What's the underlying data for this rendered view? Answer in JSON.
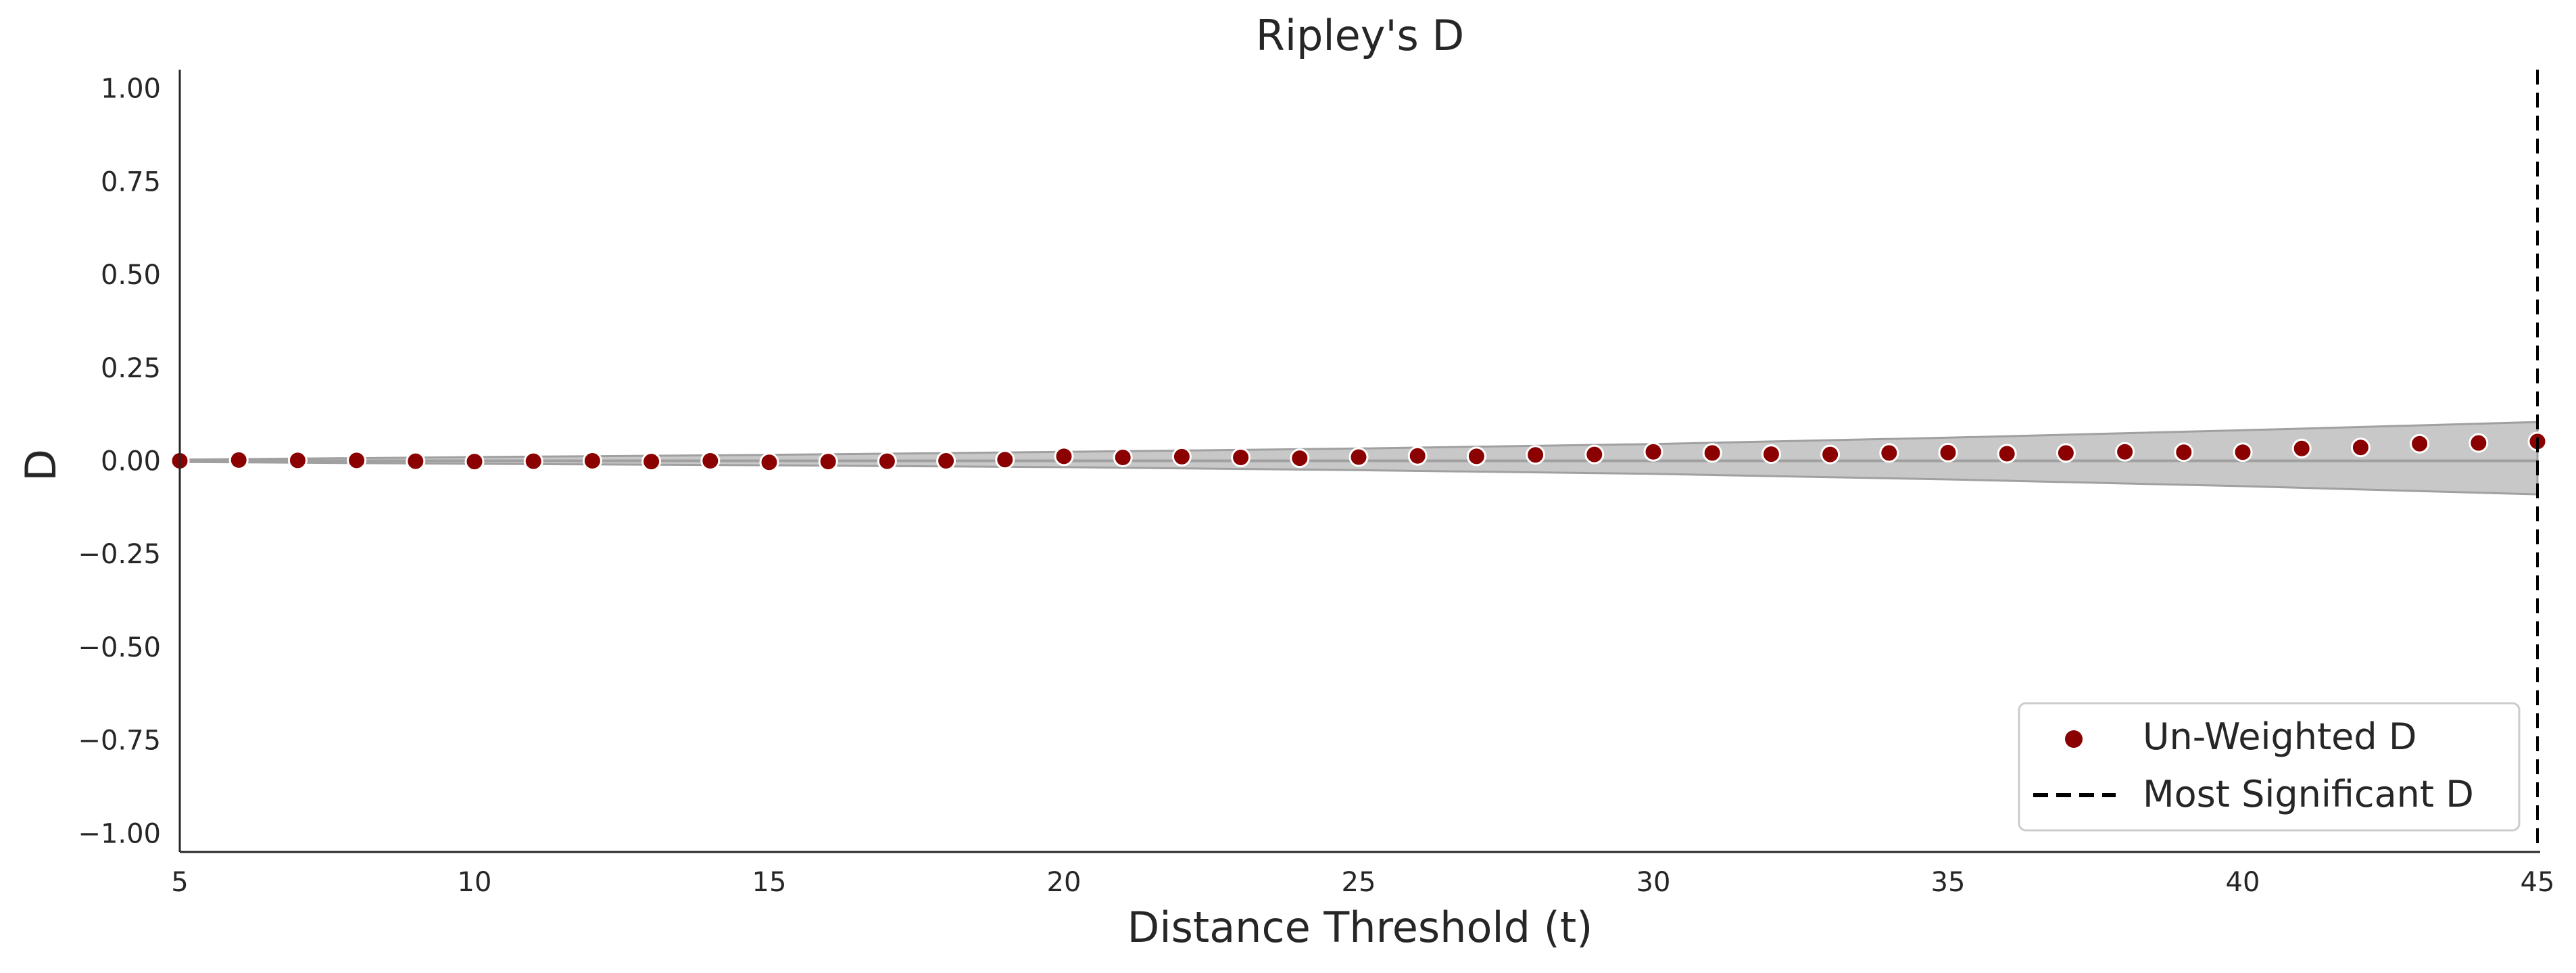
{
  "chart_data": {
    "type": "scatter",
    "title": "Ripley's D",
    "xlabel": "Distance Threshold (t)",
    "ylabel": "D",
    "xlim": [
      5,
      45
    ],
    "ylim": [
      -1.05,
      1.05
    ],
    "x_ticks": [
      5,
      10,
      15,
      20,
      25,
      30,
      35,
      40,
      45
    ],
    "x_tick_labels": [
      "5",
      "10",
      "15",
      "20",
      "25",
      "30",
      "35",
      "40",
      "45"
    ],
    "y_ticks": [
      1.0,
      0.75,
      0.5,
      0.25,
      0.0,
      -0.25,
      -0.5,
      -0.75,
      -1.0
    ],
    "y_tick_labels": [
      "1.00",
      "0.75",
      "0.50",
      "0.25",
      "0.00",
      "−0.25",
      "−0.50",
      "−0.75",
      "−1.00"
    ],
    "grid": false,
    "legend_position": "bottom-right",
    "series": [
      {
        "name": "Un-Weighted D",
        "color": "#8b0000",
        "x": [
          5,
          6,
          7,
          8,
          9,
          10,
          11,
          12,
          13,
          14,
          15,
          16,
          17,
          18,
          19,
          20,
          21,
          22,
          23,
          24,
          25,
          26,
          27,
          28,
          29,
          30,
          31,
          32,
          33,
          34,
          35,
          36,
          37,
          38,
          39,
          40,
          41,
          42,
          43,
          44,
          45
        ],
        "y": [
          0.0,
          0.002,
          0.001,
          0.001,
          -0.001,
          -0.002,
          -0.001,
          0.0,
          -0.002,
          0.0,
          -0.004,
          -0.002,
          -0.001,
          0.0,
          0.003,
          0.012,
          0.009,
          0.011,
          0.009,
          0.007,
          0.01,
          0.013,
          0.012,
          0.016,
          0.017,
          0.024,
          0.021,
          0.018,
          0.017,
          0.021,
          0.022,
          0.019,
          0.021,
          0.024,
          0.023,
          0.023,
          0.033,
          0.036,
          0.046,
          0.048,
          0.052
        ]
      }
    ],
    "envelope": {
      "color": "#c8c8c8",
      "edge_color": "#a0a0a0",
      "x": [
        5,
        10,
        15,
        20,
        25,
        30,
        35,
        40,
        45
      ],
      "upper": [
        0.003,
        0.01,
        0.016,
        0.024,
        0.033,
        0.045,
        0.062,
        0.082,
        0.104
      ],
      "lower": [
        -0.003,
        -0.008,
        -0.012,
        -0.017,
        -0.025,
        -0.035,
        -0.05,
        -0.068,
        -0.09
      ]
    },
    "significant_line": {
      "name": "Most Significant D",
      "x": 45,
      "color": "#000000",
      "style": "dashed"
    }
  }
}
